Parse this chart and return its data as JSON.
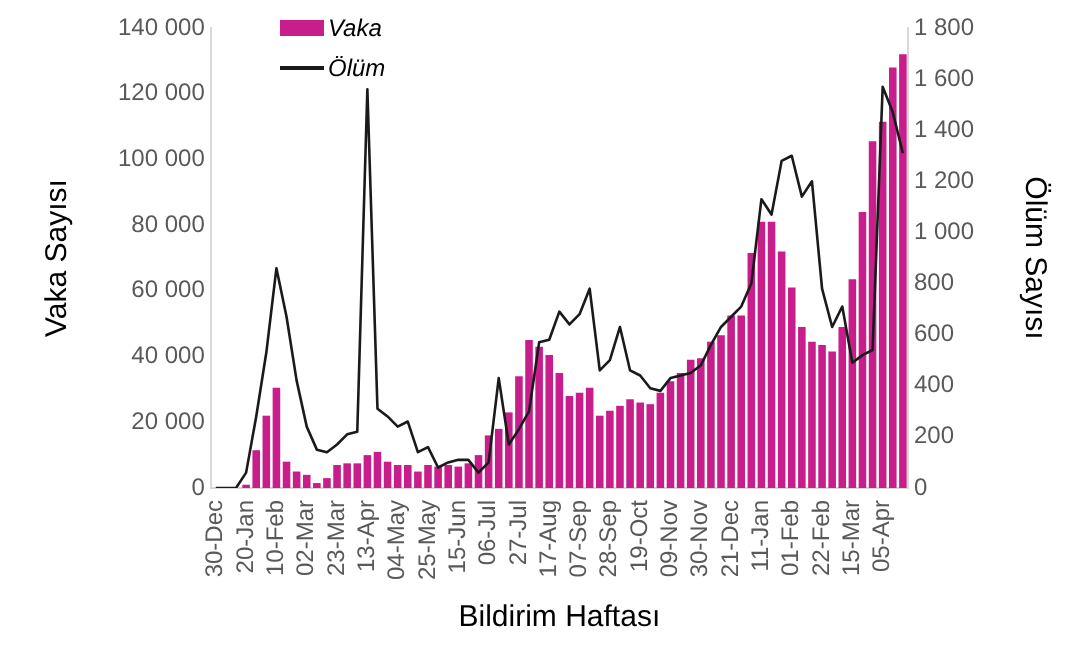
{
  "chart_data": {
    "type": "bar",
    "xlabel": "Bildirim Haftası",
    "ylabel": "Vaka Sayısı",
    "y2label": "Ölüm Sayısı",
    "categories": [
      "30-Dec",
      null,
      null,
      "20-Jan",
      null,
      null,
      "10-Feb",
      null,
      null,
      "02-Mar",
      null,
      null,
      "23-Mar",
      null,
      null,
      "13-Apr",
      null,
      null,
      "04-May",
      null,
      null,
      "25-May",
      null,
      null,
      "15-Jun",
      null,
      null,
      "06-Jul",
      null,
      null,
      "27-Jul",
      null,
      null,
      "17-Aug",
      null,
      null,
      "07-Sep",
      null,
      null,
      "28-Sep",
      null,
      null,
      "19-Oct",
      null,
      null,
      "09-Nov",
      null,
      null,
      "30-Nov",
      null,
      null,
      "21-Dec",
      null,
      null,
      "11-Jan",
      null,
      null,
      "01-Feb",
      null,
      null,
      "22-Feb",
      null,
      null,
      "15-Mar",
      null,
      null,
      "05-Apr",
      null,
      null
    ],
    "series": [
      {
        "name": "Vaka",
        "color": "#c71e8c",
        "values": [
          0,
          0,
          0,
          1000,
          11500,
          22000,
          30500,
          8000,
          5000,
          4000,
          1500,
          3000,
          7000,
          7500,
          7500,
          10000,
          11000,
          8000,
          7000,
          7000,
          5000,
          7000,
          6500,
          7000,
          6500,
          7500,
          10000,
          16000,
          18000,
          23000,
          34000,
          45000,
          43000,
          40500,
          35000,
          28000,
          29000,
          30500,
          22000,
          23500,
          25000,
          27000,
          26000,
          25500,
          29000,
          32500,
          35000,
          39000,
          39500,
          44500,
          46500,
          52500,
          52500,
          71500,
          81000,
          81000,
          72000,
          61000,
          49000,
          44500,
          43500,
          41500,
          49000,
          63500,
          84000,
          105500,
          111500,
          128000,
          132000
        ]
      },
      {
        "name": "Ölüm",
        "type": "line",
        "axis": "y2",
        "color": "#1a1a1a",
        "values": [
          0,
          0,
          0,
          60,
          280,
          530,
          860,
          670,
          420,
          240,
          150,
          140,
          170,
          210,
          220,
          1560,
          310,
          280,
          240,
          260,
          140,
          160,
          80,
          100,
          110,
          110,
          60,
          100,
          430,
          170,
          230,
          300,
          570,
          580,
          690,
          640,
          680,
          780,
          460,
          500,
          630,
          460,
          440,
          390,
          380,
          430,
          440,
          450,
          480,
          560,
          630,
          670,
          710,
          800,
          1130,
          1070,
          1280,
          1300,
          1140,
          1200,
          780,
          630,
          710,
          490,
          520,
          540,
          1570,
          1470,
          1310
        ]
      }
    ],
    "ylim": [
      0,
      140000
    ],
    "yticks": [
      {
        "value": 0,
        "label": "0"
      },
      {
        "value": 20000,
        "label": "20 000"
      },
      {
        "value": 40000,
        "label": "40 000"
      },
      {
        "value": 60000,
        "label": "60 000"
      },
      {
        "value": 80000,
        "label": "80 000"
      },
      {
        "value": 100000,
        "label": "100 000"
      },
      {
        "value": 120000,
        "label": "120 000"
      },
      {
        "value": 140000,
        "label": "140 000"
      }
    ],
    "y2lim": [
      0,
      1800
    ],
    "y2ticks": [
      0,
      200,
      400,
      600,
      800,
      {
        "value": 1000,
        "label": "1 000"
      },
      {
        "value": 1200,
        "label": "1 200"
      },
      {
        "value": 1400,
        "label": "1 400"
      },
      {
        "value": 1600,
        "label": "1 600"
      },
      {
        "value": 1800,
        "label": "1 800"
      }
    ],
    "grid": false,
    "legend": "top left"
  }
}
